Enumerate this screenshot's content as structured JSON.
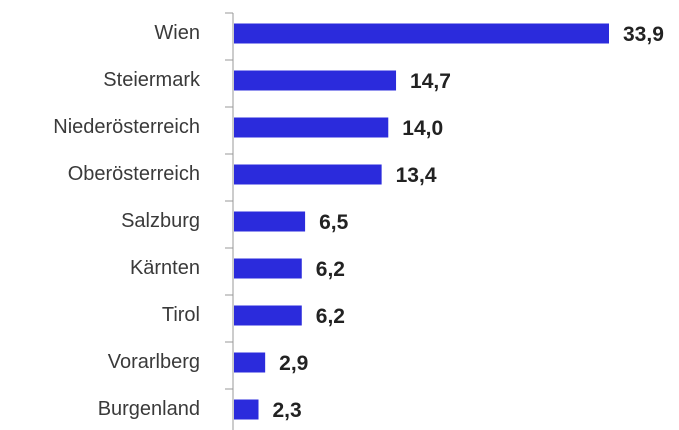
{
  "chart_data": {
    "type": "barh",
    "categories": [
      "Wien",
      "Steiermark",
      "Niederösterreich",
      "Oberösterreich",
      "Salzburg",
      "Kärnten",
      "Tirol",
      "Vorarlberg",
      "Burgenland"
    ],
    "values": [
      33.9,
      14.7,
      14.0,
      13.4,
      6.5,
      6.2,
      6.2,
      2.9,
      2.3
    ],
    "value_labels": [
      "33,9",
      "14,7",
      "14,0",
      "13,4",
      "6,5",
      "6,2",
      "6,2",
      "2,9",
      "2,3"
    ],
    "color": "#2b2bdc"
  }
}
